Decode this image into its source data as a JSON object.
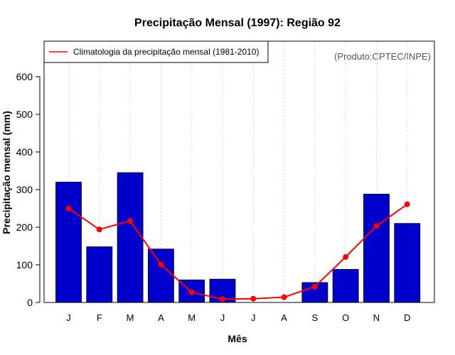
{
  "chart_data": {
    "type": "bar",
    "title": "Precipitação Mensal (1997): Região 92",
    "xlabel": "Mês",
    "ylabel": "Precipitação mensal (mm)",
    "ylim": [
      0,
      700
    ],
    "yticks": [
      0,
      100,
      200,
      300,
      400,
      500,
      600
    ],
    "grid": "vertical dotted",
    "categories": [
      "J",
      "F",
      "M",
      "A",
      "M",
      "J",
      "J",
      "A",
      "S",
      "O",
      "N",
      "D"
    ],
    "series": [
      {
        "name": "Precipitação mensal 1997",
        "type": "bar",
        "color": "#0000cc",
        "values": [
          320,
          148,
          345,
          142,
          60,
          62,
          0,
          0,
          53,
          88,
          288,
          210
        ]
      },
      {
        "name": "Climatologia da precipitação mensal (1981-2010)",
        "type": "line",
        "color": "#ff0000",
        "values": [
          250,
          194,
          217,
          101,
          27,
          9,
          10,
          14,
          42,
          121,
          203,
          261
        ]
      }
    ],
    "legend": {
      "position": "top-left",
      "entries": [
        "Climatologia da precipitação mensal (1981-2010)"
      ]
    },
    "annotation": "(Produto:CPTEC/INPE)"
  }
}
